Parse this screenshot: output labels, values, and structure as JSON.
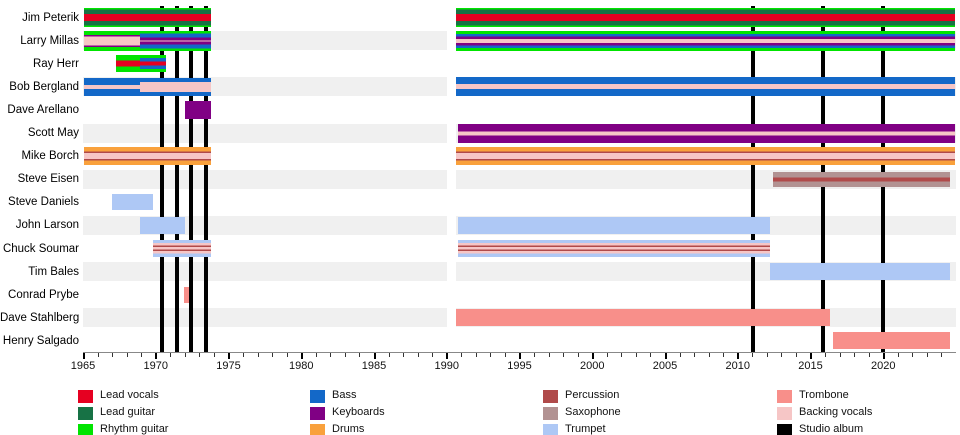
{
  "colors": {
    "lead_vocals": "#e60021",
    "lead_guitar": "#177245",
    "rhythm_guitar": "#00e400",
    "bass": "#1368c8",
    "keyboards": "#800084",
    "drums": "#f9a13c",
    "percussion": "#b04a4a",
    "saxophone": "#b29292",
    "trumpet": "#aec8f5",
    "trombone": "#f88f8a",
    "backing_vocals": "#f6c6c6",
    "studio_album": "#000000",
    "grid_band": "#f0f0f0",
    "axis": "#888888"
  },
  "legend": [
    {
      "label": "Lead vocals",
      "role": "lead_vocals"
    },
    {
      "label": "Lead guitar",
      "role": "lead_guitar"
    },
    {
      "label": "Rhythm guitar",
      "role": "rhythm_guitar"
    },
    {
      "label": "Bass",
      "role": "bass"
    },
    {
      "label": "Keyboards",
      "role": "keyboards"
    },
    {
      "label": "Drums",
      "role": "drums"
    },
    {
      "label": "Percussion",
      "role": "percussion"
    },
    {
      "label": "Saxophone",
      "role": "saxophone"
    },
    {
      "label": "Trumpet",
      "role": "trumpet"
    },
    {
      "label": "Trombone",
      "role": "trombone"
    },
    {
      "label": "Backing vocals",
      "role": "backing_vocals"
    },
    {
      "label": "Studio album",
      "role": "studio_album"
    }
  ],
  "chart_data": {
    "type": "timeline",
    "title": "",
    "x_axis": {
      "start": 1965,
      "end": 2025,
      "major_ticks": [
        1965,
        1970,
        1975,
        1980,
        1985,
        1990,
        1995,
        2000,
        2005,
        2010,
        2015,
        2020
      ],
      "minor_tick_interval": 1
    },
    "gap": {
      "start": 1990.05,
      "end": 1990.62
    },
    "albums": [
      1970.43,
      1971.46,
      1972.42,
      1973.45,
      2011.05,
      2015.85,
      2020.0
    ],
    "members": [
      {
        "name": "Jim Peterik",
        "bars": [
          {
            "start": 1965.05,
            "end": 1973.8,
            "stripes": [
              [
                "rhythm_guitar",
                1.5
              ],
              [
                "lead_guitar",
                4.5
              ],
              [
                "lead_vocals",
                7
              ],
              [
                "lead_guitar",
                4.5
              ],
              [
                "rhythm_guitar",
                1.5
              ]
            ]
          },
          {
            "start": 1990.65,
            "end": 2024.9,
            "stripes": [
              [
                "rhythm_guitar",
                1.5
              ],
              [
                "lead_guitar",
                4.5
              ],
              [
                "lead_vocals",
                7
              ],
              [
                "lead_guitar",
                4.5
              ],
              [
                "rhythm_guitar",
                1.5
              ]
            ]
          }
        ]
      },
      {
        "name": "Larry Millas",
        "bars": [
          {
            "start": 1965.05,
            "end": 1968.9,
            "stripes": [
              [
                "rhythm_guitar",
                4
              ],
              [
                "keyboards",
                1.5
              ],
              [
                "backing_vocals",
                9
              ],
              [
                "keyboards",
                1.5
              ],
              [
                "rhythm_guitar",
                4
              ]
            ]
          },
          {
            "start": 1968.9,
            "end": 1973.8,
            "stripes": [
              [
                "rhythm_guitar",
                2.5
              ],
              [
                "bass",
                4
              ],
              [
                "keyboards",
                3
              ],
              [
                "backing_vocals",
                1
              ],
              [
                "keyboards",
                3
              ],
              [
                "bass",
                4
              ],
              [
                "rhythm_guitar",
                2.5
              ]
            ]
          },
          {
            "start": 1990.65,
            "end": 2024.9,
            "stripes": [
              [
                "rhythm_guitar",
                3
              ],
              [
                "bass",
                2.5
              ],
              [
                "keyboards",
                2.5
              ],
              [
                "backing_vocals",
                4
              ],
              [
                "keyboards",
                2.5
              ],
              [
                "bass",
                2.5
              ],
              [
                "rhythm_guitar",
                3
              ]
            ]
          }
        ]
      },
      {
        "name": "Ray Herr",
        "bars": [
          {
            "start": 1967.25,
            "end": 1968.9,
            "stripes": [
              [
                "rhythm_guitar",
                5.5
              ],
              [
                "lead_vocals",
                6
              ],
              [
                "rhythm_guitar",
                5.5
              ]
            ]
          },
          {
            "start": 1968.9,
            "end": 1970.7,
            "stripes": [
              [
                "rhythm_guitar",
                3
              ],
              [
                "bass",
                3.5
              ],
              [
                "lead_vocals",
                4
              ],
              [
                "bass",
                3.5
              ],
              [
                "rhythm_guitar",
                3
              ]
            ]
          }
        ]
      },
      {
        "name": "Bob Bergland",
        "bars": [
          {
            "start": 1965.05,
            "end": 1968.9,
            "stripes": [
              [
                "bass",
                7
              ],
              [
                "backing_vocals",
                4
              ],
              [
                "bass",
                7
              ]
            ]
          },
          {
            "start": 1968.9,
            "end": 1973.8,
            "stripes": [
              [
                "bass",
                4
              ],
              [
                "backing_vocals",
                10
              ],
              [
                "bass",
                4
              ]
            ]
          },
          {
            "start": 1990.65,
            "end": 2024.9,
            "stripes": [
              [
                "bass",
                7
              ],
              [
                "backing_vocals",
                5
              ],
              [
                "bass",
                7
              ]
            ]
          }
        ]
      },
      {
        "name": "Dave Arellano",
        "bars": [
          {
            "start": 1972.0,
            "end": 1973.8,
            "stripes": [
              [
                "keyboards",
                18
              ]
            ]
          }
        ]
      },
      {
        "name": "Scott May",
        "bars": [
          {
            "start": 1990.8,
            "end": 2024.9,
            "stripes": [
              [
                "keyboards",
                7.5
              ],
              [
                "backing_vocals",
                4
              ],
              [
                "keyboards",
                7.5
              ]
            ]
          }
        ]
      },
      {
        "name": "Mike Borch",
        "bars": [
          {
            "start": 1965.05,
            "end": 1973.8,
            "stripes": [
              [
                "drums",
                4.5
              ],
              [
                "percussion",
                1.5
              ],
              [
                "backing_vocals",
                6
              ],
              [
                "percussion",
                1.5
              ],
              [
                "drums",
                4.5
              ]
            ]
          },
          {
            "start": 1990.65,
            "end": 2024.9,
            "stripes": [
              [
                "drums",
                4.5
              ],
              [
                "percussion",
                1.5
              ],
              [
                "backing_vocals",
                6
              ],
              [
                "percussion",
                1.5
              ],
              [
                "drums",
                4.5
              ]
            ]
          }
        ]
      },
      {
        "name": "Steve Eisen",
        "bars": [
          {
            "start": 2012.4,
            "end": 2024.6,
            "stripes": [
              [
                "saxophone",
                5.5
              ],
              [
                "percussion",
                4
              ],
              [
                "saxophone",
                5.5
              ]
            ]
          }
        ]
      },
      {
        "name": "Steve Daniels",
        "bars": [
          {
            "start": 1967.0,
            "end": 1969.8,
            "stripes": [
              [
                "trumpet",
                16
              ]
            ]
          }
        ]
      },
      {
        "name": "John Larson",
        "bars": [
          {
            "start": 1968.9,
            "end": 1972.0,
            "stripes": [
              [
                "trumpet",
                17
              ]
            ]
          },
          {
            "start": 1990.8,
            "end": 2012.2,
            "stripes": [
              [
                "trumpet",
                17
              ]
            ]
          }
        ]
      },
      {
        "name": "Chuck Soumar",
        "bars": [
          {
            "start": 1969.8,
            "end": 1973.8,
            "stripes": [
              [
                "trumpet",
                3
              ],
              [
                "backing_vocals",
                2.5
              ],
              [
                "percussion",
                1.5
              ],
              [
                "backing_vocals",
                2.5
              ],
              [
                "percussion",
                1.5
              ],
              [
                "backing_vocals",
                2.5
              ],
              [
                "trumpet",
                3
              ]
            ]
          },
          {
            "start": 1990.8,
            "end": 2012.2,
            "stripes": [
              [
                "trumpet",
                3
              ],
              [
                "backing_vocals",
                2.5
              ],
              [
                "percussion",
                1.5
              ],
              [
                "backing_vocals",
                2.5
              ],
              [
                "percussion",
                1.5
              ],
              [
                "backing_vocals",
                2.5
              ],
              [
                "trumpet",
                3
              ]
            ]
          }
        ]
      },
      {
        "name": "Tim Bales",
        "bars": [
          {
            "start": 2012.2,
            "end": 2024.6,
            "stripes": [
              [
                "trumpet",
                17
              ]
            ]
          }
        ]
      },
      {
        "name": "Conrad Prybe",
        "bars": [
          {
            "start": 1971.95,
            "end": 1972.3,
            "stripes": [
              [
                "trombone",
                16
              ]
            ]
          }
        ]
      },
      {
        "name": "Dave Stahlberg",
        "bars": [
          {
            "start": 1990.65,
            "end": 2016.35,
            "stripes": [
              [
                "trombone",
                17
              ]
            ]
          }
        ]
      },
      {
        "name": "Henry Salgado",
        "bars": [
          {
            "start": 2016.55,
            "end": 2024.6,
            "stripes": [
              [
                "trombone",
                17
              ]
            ]
          }
        ]
      }
    ]
  }
}
